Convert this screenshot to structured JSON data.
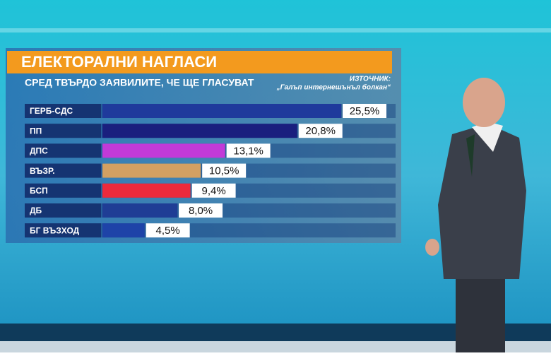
{
  "chart_data": {
    "type": "bar",
    "title": "ЕЛЕКТОРАЛНИ НАГЛАСИ",
    "subtitle": "СРЕД ТВЪРДО ЗАЯВИЛИТЕ, ЧЕ ЩЕ ГЛАСУВАТ",
    "source_label": "ИЗТОЧНИК:",
    "source": "„Галъп интернешънъл болкан“",
    "categories": [
      "ГЕРБ-СДС",
      "ПП",
      "ДПС",
      "ВЪЗР.",
      "БСП",
      "ДБ",
      "БГ ВЪЗХОД"
    ],
    "series": [
      {
        "colors": [
          "#1f3a9c",
          "#1a1f7e",
          "#c23ad8",
          "#d3a062",
          "#ec2a3c",
          "#1f3d95",
          "#1e43a8"
        ],
        "values": [
          25.5,
          20.8,
          13.1,
          10.5,
          9.4,
          8.0,
          4.5
        ],
        "value_labels": [
          "25,5%",
          "20,8%",
          "13,1%",
          "10,5%",
          "9,4%",
          "8,0%",
          "4,5%"
        ]
      }
    ]
  }
}
